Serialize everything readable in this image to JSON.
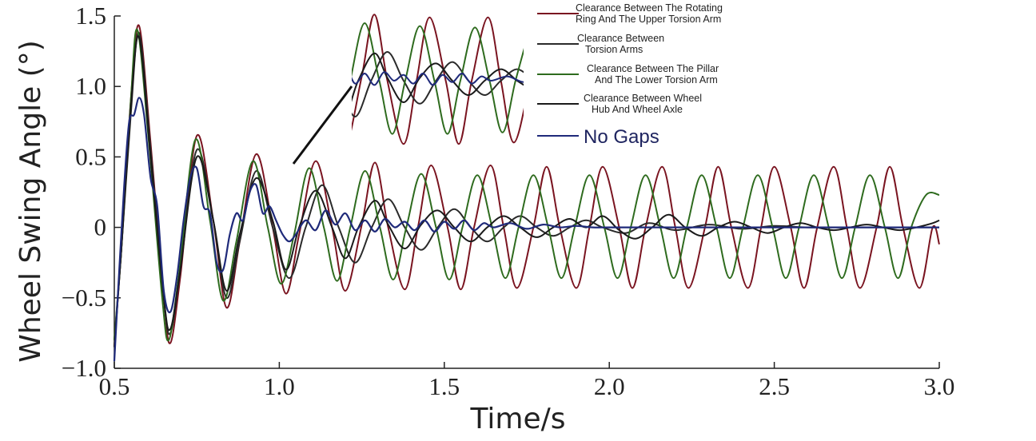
{
  "chart_data": {
    "type": "line",
    "xlabel": "Time/s",
    "ylabel": "Wheel Swing Angle (°)",
    "xlim": [
      0.5,
      3.0
    ],
    "ylim": [
      -1.0,
      1.5
    ],
    "xticks": [
      0.5,
      1.0,
      1.5,
      2.0,
      2.5,
      3.0
    ],
    "yticks": [
      -1.0,
      -0.5,
      0,
      0.5,
      1.0,
      1.5
    ],
    "xtick_labels": [
      "0.5",
      "1.0",
      "1.5",
      "2.0",
      "2.5",
      "3.0"
    ],
    "ytick_labels": [
      "−1.0",
      "−0.5",
      "0",
      "0.5",
      "1.0",
      "1.5"
    ],
    "grid": false,
    "legend_position": "top-right",
    "inset": {
      "description_shown": false,
      "x_range": [
        1.22,
        1.75
      ]
    },
    "series": [
      {
        "name": "Clearance Between The Rotating Ring And The Upper Torsion Arm",
        "legend_lines": [
          "Clearance Between The Rotating",
          "Ring And The Upper Torsion Arm"
        ],
        "color": "#7a1420",
        "x": [
          0.5,
          0.52,
          0.55,
          0.575,
          0.61,
          0.65,
          0.67,
          0.7,
          0.75,
          0.8,
          0.84,
          0.88,
          0.93,
          0.98,
          1.02,
          1.06,
          1.11,
          1.16,
          1.2,
          1.25,
          1.29,
          1.33,
          1.38,
          1.42,
          1.46,
          1.51,
          1.55,
          1.59,
          1.64,
          1.68,
          1.72,
          1.77,
          1.81,
          1.85,
          1.9,
          1.94,
          1.98,
          2.03,
          2.07,
          2.11,
          2.16,
          2.2,
          2.24,
          2.29,
          2.33,
          2.37,
          2.42,
          2.46,
          2.5,
          2.55,
          2.59,
          2.63,
          2.68,
          2.72,
          2.76,
          2.81,
          2.85,
          2.89,
          2.94,
          2.98,
          3.0
        ],
        "y": [
          -0.85,
          -0.2,
          0.9,
          1.43,
          0.6,
          -0.5,
          -0.82,
          -0.35,
          0.65,
          0.05,
          -0.57,
          -0.1,
          0.52,
          0.0,
          -0.47,
          -0.05,
          0.47,
          0.0,
          -0.45,
          0.02,
          0.46,
          0.0,
          -0.44,
          0.0,
          0.44,
          0.0,
          -0.44,
          0.0,
          0.44,
          0.0,
          -0.43,
          0.0,
          0.43,
          0.0,
          -0.43,
          0.0,
          0.43,
          0.0,
          -0.43,
          0.0,
          0.43,
          0.0,
          -0.43,
          0.0,
          0.43,
          0.0,
          -0.43,
          0.0,
          0.43,
          0.0,
          -0.43,
          0.0,
          0.43,
          0.0,
          -0.43,
          0.0,
          0.43,
          0.0,
          -0.43,
          0.0,
          -0.12
        ]
      },
      {
        "name": "Clearance Between Torsion Arms",
        "legend_lines": [
          "Clearance Between",
          "Torsion Arms"
        ],
        "color": "#2a2a2a",
        "x": [
          0.5,
          0.52,
          0.55,
          0.575,
          0.61,
          0.65,
          0.67,
          0.7,
          0.75,
          0.8,
          0.84,
          0.88,
          0.93,
          0.98,
          1.03,
          1.08,
          1.13,
          1.18,
          1.23,
          1.28,
          1.33,
          1.38,
          1.43,
          1.48,
          1.53,
          1.58,
          1.63,
          1.68,
          1.73,
          1.78,
          1.83,
          1.88,
          1.93,
          1.98,
          2.05,
          2.12,
          2.2,
          2.3,
          2.4,
          2.5,
          2.6,
          2.7,
          2.8,
          2.9,
          3.0
        ],
        "y": [
          -0.8,
          -0.2,
          0.8,
          1.38,
          0.55,
          -0.5,
          -0.75,
          -0.3,
          0.55,
          0.05,
          -0.5,
          -0.1,
          0.4,
          0.0,
          -0.36,
          0.0,
          0.3,
          0.0,
          -0.25,
          0.0,
          0.2,
          0.0,
          -0.16,
          0.0,
          0.13,
          0.0,
          -0.1,
          0.0,
          0.08,
          0.0,
          -0.06,
          0.0,
          0.05,
          0.0,
          -0.04,
          0.03,
          -0.02,
          0.02,
          -0.01,
          0.01,
          0.0,
          0.0,
          0.0,
          0.0,
          0.0
        ]
      },
      {
        "name": "Clearance Between The Pillar And The Lower Torsion Arm",
        "legend_lines": [
          "Clearance Between The Pillar",
          "And The Lower Torsion Arm"
        ],
        "color": "#2e6b1e",
        "x": [
          0.5,
          0.52,
          0.55,
          0.57,
          0.605,
          0.645,
          0.665,
          0.695,
          0.745,
          0.79,
          0.83,
          0.87,
          0.92,
          0.965,
          1.005,
          1.045,
          1.09,
          1.135,
          1.175,
          1.215,
          1.26,
          1.305,
          1.345,
          1.385,
          1.43,
          1.475,
          1.515,
          1.555,
          1.6,
          1.645,
          1.685,
          1.725,
          1.77,
          1.815,
          1.855,
          1.895,
          1.94,
          1.985,
          2.025,
          2.065,
          2.11,
          2.155,
          2.195,
          2.235,
          2.28,
          2.325,
          2.365,
          2.405,
          2.45,
          2.495,
          2.535,
          2.575,
          2.62,
          2.665,
          2.705,
          2.745,
          2.79,
          2.835,
          2.875,
          2.915,
          2.96,
          3.0
        ],
        "y": [
          -0.8,
          -0.2,
          0.9,
          1.4,
          0.6,
          -0.5,
          -0.8,
          -0.35,
          0.62,
          0.05,
          -0.52,
          -0.1,
          0.47,
          0.0,
          -0.4,
          -0.05,
          0.42,
          0.0,
          -0.38,
          0.0,
          0.4,
          0.0,
          -0.37,
          0.0,
          0.38,
          0.0,
          -0.37,
          0.0,
          0.37,
          0.0,
          -0.36,
          0.0,
          0.37,
          0.0,
          -0.36,
          0.0,
          0.37,
          0.0,
          -0.36,
          0.0,
          0.37,
          0.0,
          -0.36,
          0.0,
          0.37,
          0.0,
          -0.36,
          0.0,
          0.37,
          0.0,
          -0.36,
          0.0,
          0.37,
          0.0,
          -0.36,
          0.0,
          0.37,
          0.0,
          -0.36,
          0.0,
          0.23,
          0.23
        ]
      },
      {
        "name": "Clearance Between Wheel Hub And Wheel Axle",
        "legend_lines": [
          "Clearance Between Wheel",
          "Hub And Wheel Axle"
        ],
        "color": "#1a1a1a",
        "x": [
          0.5,
          0.52,
          0.55,
          0.575,
          0.61,
          0.65,
          0.67,
          0.7,
          0.75,
          0.8,
          0.84,
          0.88,
          0.93,
          0.98,
          1.02,
          1.06,
          1.11,
          1.16,
          1.2,
          1.24,
          1.29,
          1.33,
          1.38,
          1.43,
          1.48,
          1.53,
          1.58,
          1.63,
          1.68,
          1.73,
          1.78,
          1.83,
          1.88,
          1.93,
          1.98,
          2.03,
          2.08,
          2.13,
          2.18,
          2.23,
          2.28,
          2.33,
          2.38,
          2.43,
          2.48,
          2.53,
          2.58,
          2.63,
          2.68,
          2.73,
          2.78,
          2.83,
          2.88,
          2.93,
          2.98,
          3.0
        ],
        "y": [
          -0.85,
          -0.2,
          0.85,
          1.35,
          0.5,
          -0.5,
          -0.72,
          -0.3,
          0.5,
          0.05,
          -0.45,
          -0.05,
          0.35,
          0.05,
          -0.3,
          0.0,
          0.26,
          0.0,
          -0.22,
          0.0,
          0.19,
          0.02,
          -0.15,
          0.02,
          0.12,
          0.0,
          -0.1,
          0.0,
          0.08,
          0.0,
          -0.07,
          0.0,
          0.06,
          0.0,
          0.08,
          -0.02,
          -0.08,
          0.0,
          0.09,
          0.0,
          -0.06,
          0.0,
          0.04,
          0.0,
          -0.04,
          0.0,
          0.03,
          0.0,
          -0.02,
          0.0,
          0.02,
          0.0,
          -0.02,
          0.0,
          0.03,
          0.05
        ]
      },
      {
        "name": "No Gaps",
        "legend_lines": [
          "No Gaps"
        ],
        "color": "#1f2a7a",
        "x": [
          0.5,
          0.515,
          0.53,
          0.545,
          0.56,
          0.575,
          0.59,
          0.61,
          0.63,
          0.65,
          0.67,
          0.69,
          0.71,
          0.73,
          0.75,
          0.77,
          0.79,
          0.81,
          0.83,
          0.85,
          0.87,
          0.89,
          0.91,
          0.93,
          0.95,
          0.97,
          0.99,
          1.01,
          1.03,
          1.05,
          1.08,
          1.11,
          1.14,
          1.17,
          1.2,
          1.23,
          1.26,
          1.29,
          1.32,
          1.35,
          1.38,
          1.41,
          1.44,
          1.47,
          1.5,
          1.53,
          1.56,
          1.59,
          1.62,
          1.65,
          1.7,
          1.75,
          1.8,
          1.85,
          1.9,
          1.95,
          2.0,
          2.1,
          2.2,
          2.3,
          2.4,
          2.5,
          2.6,
          2.7,
          2.8,
          2.9,
          3.0
        ],
        "y": [
          -0.95,
          -0.3,
          0.3,
          0.75,
          0.8,
          0.92,
          0.8,
          0.35,
          0.15,
          -0.45,
          -0.6,
          -0.35,
          0.05,
          0.35,
          0.42,
          0.15,
          0.1,
          -0.25,
          -0.3,
          -0.05,
          0.1,
          0.05,
          0.25,
          0.3,
          0.1,
          0.15,
          0.05,
          -0.05,
          -0.1,
          -0.05,
          0.05,
          -0.02,
          0.12,
          0.02,
          0.1,
          -0.02,
          0.05,
          -0.03,
          0.06,
          0.0,
          0.04,
          -0.02,
          0.05,
          -0.03,
          0.04,
          -0.01,
          0.05,
          -0.02,
          0.03,
          0.0,
          0.03,
          -0.01,
          0.02,
          0.0,
          0.01,
          0.0,
          0.0,
          0.0,
          0.0,
          0.0,
          0.0,
          0.0,
          0.0,
          0.0,
          0.0,
          0.0,
          0.0
        ]
      }
    ]
  }
}
